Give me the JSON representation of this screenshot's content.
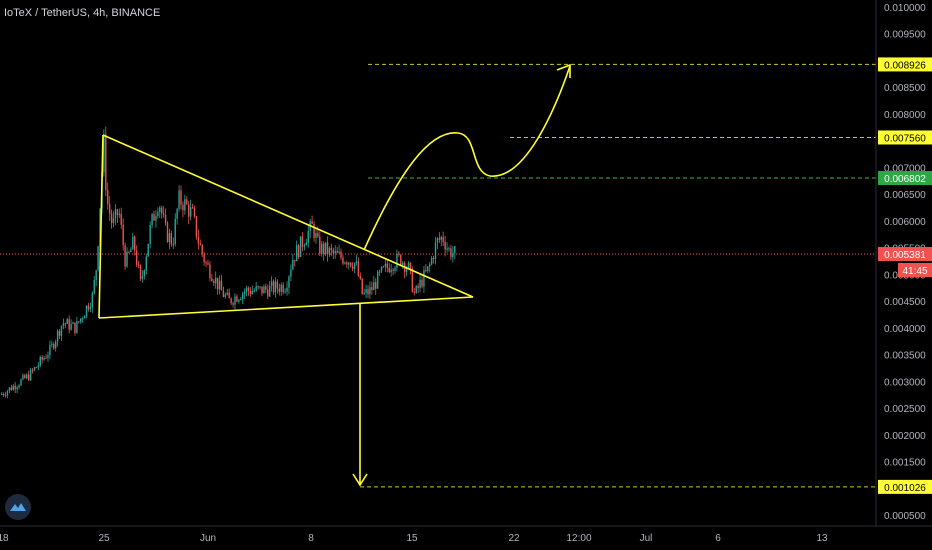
{
  "header": {
    "title": "IoTeX / TetherUS, 4h, BINANCE"
  },
  "colors": {
    "background": "#000000",
    "up": "#26a69a",
    "down": "#ef5350",
    "annotation": "#ffff33",
    "level": "#c8c830",
    "level_green": "#3fb54a",
    "price_line": "#ef5350",
    "axis_text": "#b2b5be"
  },
  "chart_data": {
    "type": "candlestick",
    "title": "IoTeX / TetherUS, 4h, BINANCE",
    "ylim": [
      0.0004,
      0.0102
    ],
    "y_ticks": [
      "0.010000",
      "0.009500",
      "0.009000",
      "0.008500",
      "0.008000",
      "0.007500",
      "0.007000",
      "0.006500",
      "0.006000",
      "0.005500",
      "0.005000",
      "0.004500",
      "0.004000",
      "0.003500",
      "0.003000",
      "0.002500",
      "0.002000",
      "0.001500",
      "0.001000",
      "0.000500"
    ],
    "x_ticks": [
      "18",
      "25",
      "Jun",
      "8",
      "15",
      "22",
      "12:00",
      "Jul",
      "6",
      "13"
    ],
    "last_price": {
      "value": 0.005381,
      "label": "0.005381",
      "countdown": "41:45"
    },
    "levels": [
      {
        "value": 0.008926,
        "label": "0.008926",
        "color": "yellow"
      },
      {
        "value": 0.00756,
        "label": "0.007560",
        "color": "yellow"
      },
      {
        "value": 0.006802,
        "label": "0.006802",
        "color": "green"
      },
      {
        "value": 0.001026,
        "label": "0.001026",
        "color": "yellow"
      }
    ],
    "annotations": [
      "symmetrical-triangle",
      "bullish-breakout-arrow",
      "bearish-breakdown-arrow"
    ],
    "candle_count": 236,
    "price_path": [
      [
        0,
        0.00275
      ],
      [
        28,
        0.0031
      ],
      [
        50,
        0.0036
      ],
      [
        62,
        0.0041
      ],
      [
        75,
        0.004
      ],
      [
        92,
        0.0046
      ],
      [
        96,
        0.0052
      ],
      [
        99,
        0.0062
      ],
      [
        103,
        0.0075
      ],
      [
        106,
        0.0064
      ],
      [
        112,
        0.0059
      ],
      [
        118,
        0.0062
      ],
      [
        125,
        0.0052
      ],
      [
        133,
        0.0056
      ],
      [
        140,
        0.0048
      ],
      [
        150,
        0.0059
      ],
      [
        158,
        0.0064
      ],
      [
        165,
        0.0058
      ],
      [
        172,
        0.0056
      ],
      [
        178,
        0.0064
      ],
      [
        185,
        0.0063
      ],
      [
        192,
        0.0061
      ],
      [
        198,
        0.0056
      ],
      [
        205,
        0.0052
      ],
      [
        212,
        0.005
      ],
      [
        220,
        0.0047
      ],
      [
        228,
        0.0045
      ],
      [
        236,
        0.0046
      ],
      [
        245,
        0.0047
      ],
      [
        260,
        0.0047
      ],
      [
        275,
        0.00475
      ],
      [
        285,
        0.0048
      ],
      [
        292,
        0.0053
      ],
      [
        300,
        0.00555
      ],
      [
        306,
        0.00575
      ],
      [
        312,
        0.0059
      ],
      [
        318,
        0.0055
      ],
      [
        325,
        0.00545
      ],
      [
        335,
        0.00535
      ],
      [
        345,
        0.0053
      ],
      [
        355,
        0.0052
      ],
      [
        362,
        0.0046
      ],
      [
        370,
        0.0047
      ],
      [
        380,
        0.005
      ],
      [
        390,
        0.0052
      ],
      [
        400,
        0.0053
      ],
      [
        408,
        0.0051
      ],
      [
        414,
        0.0046
      ],
      [
        420,
        0.00485
      ],
      [
        428,
        0.0051
      ],
      [
        436,
        0.0056
      ],
      [
        442,
        0.0057
      ],
      [
        448,
        0.00545
      ],
      [
        455,
        0.00538
      ]
    ]
  }
}
